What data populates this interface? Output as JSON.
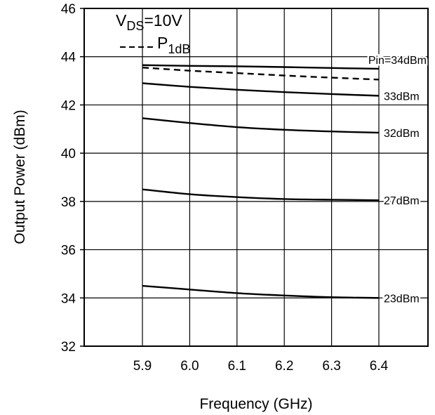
{
  "chart_data": {
    "type": "line",
    "title": "",
    "xlabel": "Frequency (GHz)",
    "ylabel": "Output Power (dBm)",
    "xlim": [
      5.9,
      6.4
    ],
    "ylim": [
      32,
      46
    ],
    "x_ticks": [
      "5.9",
      "6.0",
      "6.1",
      "6.2",
      "6.3",
      "6.4"
    ],
    "y_ticks": [
      "32",
      "34",
      "36",
      "38",
      "40",
      "42",
      "44",
      "46"
    ],
    "grid": true,
    "legend": {
      "position": "top-left",
      "condition": {
        "main": "V",
        "sub": "DS",
        "suffix": "=10V"
      },
      "p1db": {
        "main": "P",
        "sub": "1dB"
      }
    },
    "x": [
      5.9,
      6.0,
      6.1,
      6.2,
      6.3,
      6.4
    ],
    "series": [
      {
        "name": "Pin=34dBm",
        "style": "solid",
        "values": [
          43.65,
          43.62,
          43.6,
          43.57,
          43.53,
          43.5
        ]
      },
      {
        "name": "P1dB",
        "style": "dashed",
        "values": [
          43.55,
          43.42,
          43.32,
          43.22,
          43.13,
          43.05
        ]
      },
      {
        "name": "33dBm",
        "style": "solid",
        "values": [
          42.9,
          42.75,
          42.63,
          42.53,
          42.45,
          42.38
        ]
      },
      {
        "name": "32dBm",
        "style": "solid",
        "values": [
          41.45,
          41.25,
          41.08,
          40.97,
          40.9,
          40.85
        ]
      },
      {
        "name": "27dBm",
        "style": "solid",
        "values": [
          38.5,
          38.3,
          38.18,
          38.1,
          38.07,
          38.05
        ]
      },
      {
        "name": "23dBm",
        "style": "solid",
        "values": [
          34.5,
          34.35,
          34.2,
          34.1,
          34.03,
          34.0
        ]
      }
    ],
    "series_labels": [
      "Pin=34dBm",
      "33dBm",
      "32dBm",
      "27dBm",
      "23dBm"
    ]
  }
}
